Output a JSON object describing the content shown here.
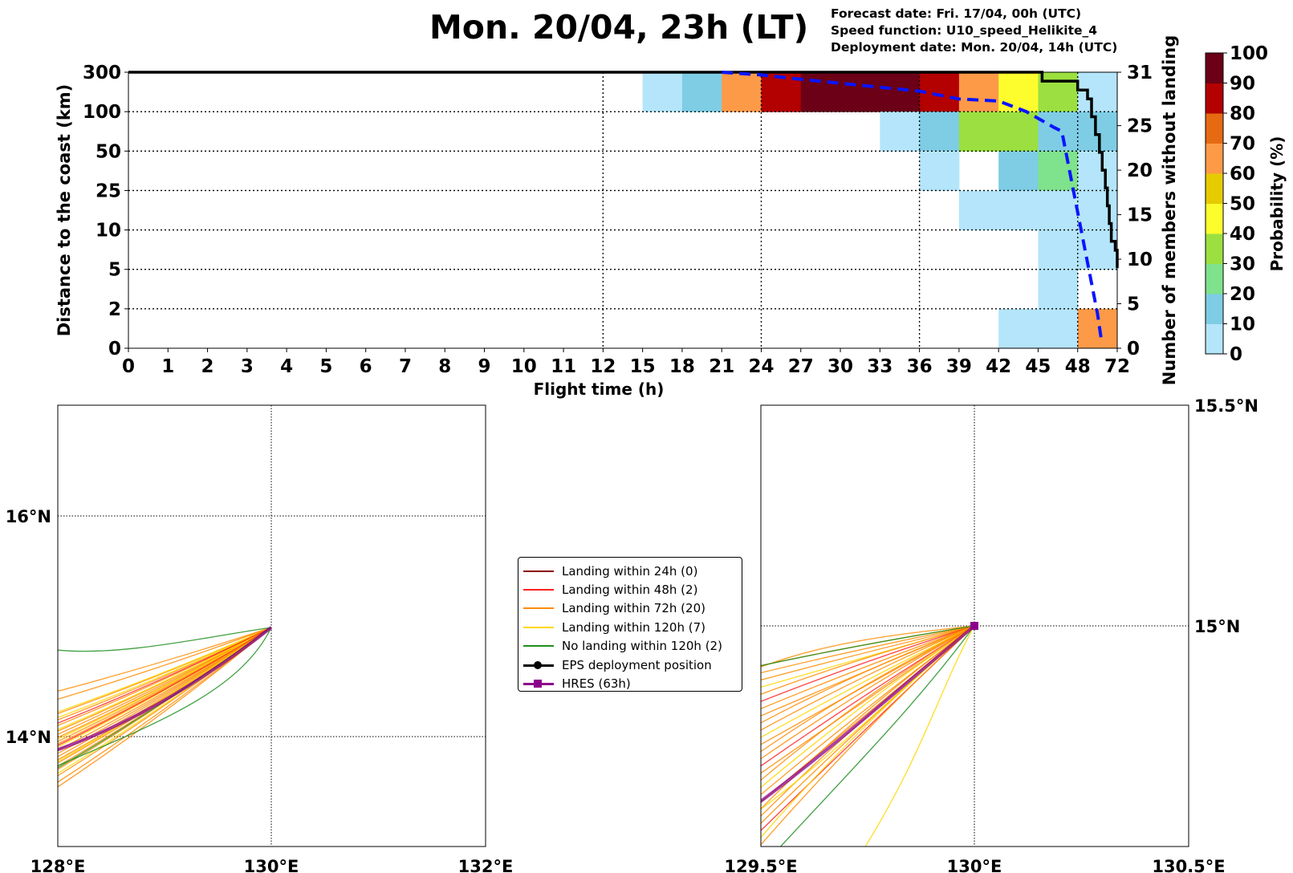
{
  "title": "Mon. 20/04, 23h (LT)",
  "info": {
    "forecast_date": "Forecast date: Fri. 17/04, 00h (UTC)",
    "speed_function": "Speed function: U10_speed_Helikite_4",
    "deployment_date": "Deployment date: Mon. 20/04, 14h (UTC)"
  },
  "chart_data": [
    {
      "type": "heatmap",
      "title": "",
      "xlabel": "Flight time (h)",
      "ylabel": "Distance to the coast (km)",
      "ylabel_right": "Number of members without landing",
      "x_tick_labels": [
        "0",
        "1",
        "2",
        "3",
        "4",
        "5",
        "6",
        "7",
        "8",
        "9",
        "10",
        "11",
        "12",
        "15",
        "18",
        "21",
        "24",
        "27",
        "30",
        "33",
        "36",
        "39",
        "42",
        "45",
        "48",
        "72"
      ],
      "y_tick_labels": [
        "0",
        "2",
        "5",
        "10",
        "25",
        "50",
        "100",
        "300"
      ],
      "y_right_ticks": [
        0,
        5,
        10,
        15,
        20,
        25,
        31
      ],
      "y_right_range": [
        0,
        31
      ],
      "colorbar": {
        "label": "Probability (%)",
        "ticks": [
          "0",
          "10",
          "20",
          "30",
          "40",
          "50",
          "60",
          "70",
          "80",
          "90",
          "100"
        ],
        "colors": [
          "#b4e5fa",
          "#7ecde4",
          "#7fe28c",
          "#9be040",
          "#fdfd2e",
          "#e6cb00",
          "#fd9a48",
          "#e66a12",
          "#b30000",
          "#6b0016"
        ]
      },
      "cells": [
        {
          "col": 13,
          "row": 6,
          "p": 5
        },
        {
          "col": 14,
          "row": 6,
          "p": 15
        },
        {
          "col": 15,
          "row": 6,
          "p": 65
        },
        {
          "col": 16,
          "row": 6,
          "p": 85
        },
        {
          "col": 17,
          "row": 6,
          "p": 95
        },
        {
          "col": 18,
          "row": 6,
          "p": 95
        },
        {
          "col": 19,
          "row": 6,
          "p": 95
        },
        {
          "col": 20,
          "row": 6,
          "p": 85
        },
        {
          "col": 21,
          "row": 6,
          "p": 65
        },
        {
          "col": 22,
          "row": 6,
          "p": 45
        },
        {
          "col": 23,
          "row": 6,
          "p": 35
        },
        {
          "col": 24,
          "row": 6,
          "p": 5
        },
        {
          "col": 19,
          "row": 5,
          "p": 5
        },
        {
          "col": 20,
          "row": 5,
          "p": 15
        },
        {
          "col": 21,
          "row": 5,
          "p": 35
        },
        {
          "col": 22,
          "row": 5,
          "p": 35
        },
        {
          "col": 23,
          "row": 5,
          "p": 15
        },
        {
          "col": 24,
          "row": 5,
          "p": 15
        },
        {
          "col": 20,
          "row": 4,
          "p": 5
        },
        {
          "col": 22,
          "row": 4,
          "p": 15
        },
        {
          "col": 23,
          "row": 4,
          "p": 25
        },
        {
          "col": 24,
          "row": 4,
          "p": 5
        },
        {
          "col": 21,
          "row": 3,
          "p": 5
        },
        {
          "col": 22,
          "row": 3,
          "p": 5
        },
        {
          "col": 23,
          "row": 3,
          "p": 5
        },
        {
          "col": 24,
          "row": 3,
          "p": 5
        },
        {
          "col": 23,
          "row": 2,
          "p": 5
        },
        {
          "col": 24,
          "row": 2,
          "p": 5
        },
        {
          "col": 23,
          "row": 1,
          "p": 5
        },
        {
          "col": 22,
          "row": 0,
          "p": 5
        },
        {
          "col": 23,
          "row": 0,
          "p": 5
        },
        {
          "col": 24,
          "row": 0,
          "p": 65
        }
      ],
      "members_no_landing": [
        [
          0,
          31
        ],
        [
          23.1,
          31
        ],
        [
          23.1,
          30
        ],
        [
          24.0,
          30
        ],
        [
          24.0,
          29
        ],
        [
          24.25,
          29
        ],
        [
          24.25,
          28
        ],
        [
          24.35,
          28
        ],
        [
          24.35,
          26
        ],
        [
          24.45,
          26
        ],
        [
          24.45,
          24
        ],
        [
          24.55,
          24
        ],
        [
          24.55,
          22
        ],
        [
          24.62,
          22
        ],
        [
          24.62,
          20
        ],
        [
          24.7,
          20
        ],
        [
          24.7,
          18
        ],
        [
          24.75,
          18
        ],
        [
          24.75,
          16
        ],
        [
          24.8,
          16
        ],
        [
          24.8,
          14
        ],
        [
          24.85,
          14
        ],
        [
          24.85,
          12
        ],
        [
          24.95,
          12
        ],
        [
          24.95,
          11
        ],
        [
          25,
          11
        ],
        [
          25,
          10
        ],
        [
          25,
          9
        ]
      ],
      "median_distance": [
        [
          15.0,
          7.0
        ],
        [
          16.0,
          6.93
        ],
        [
          17.0,
          6.82
        ],
        [
          18.0,
          6.72
        ],
        [
          19.0,
          6.62
        ],
        [
          20.0,
          6.52
        ],
        [
          21.0,
          6.32
        ],
        [
          22.0,
          6.27
        ],
        [
          22.7,
          6.0
        ],
        [
          23.4,
          5.6
        ],
        [
          23.6,
          5.5
        ],
        [
          24.5,
          0.88
        ],
        [
          24.6,
          0.2
        ]
      ]
    },
    {
      "type": "map",
      "title": "",
      "x_ticks": [
        "128°E",
        "130°E",
        "132°E"
      ],
      "y_ticks": [
        "14°N",
        "16°N"
      ],
      "lon_range": [
        128,
        132
      ],
      "lat_range": [
        13,
        17
      ]
    },
    {
      "type": "map",
      "title": "",
      "x_ticks": [
        "129.5°E",
        "130°E",
        "130.5°E"
      ],
      "y_ticks": [
        "15°N",
        "15.5°N"
      ],
      "lon_range": [
        129.5,
        130.5
      ],
      "lat_range": [
        14.5,
        15.5
      ]
    }
  ],
  "legend": [
    {
      "label": "Landing within 24h (0)",
      "color": "#8b0000",
      "marker": "none"
    },
    {
      "label": "Landing within 48h (2)",
      "color": "#ff2020",
      "marker": "none"
    },
    {
      "label": "Landing within 72h (20)",
      "color": "#ff8c00",
      "marker": "none"
    },
    {
      "label": "Landing within 120h (7)",
      "color": "#ffd700",
      "marker": "none"
    },
    {
      "label": "No landing within 120h (2)",
      "color": "#1f8f1f",
      "marker": "none"
    },
    {
      "label": "EPS deployment position",
      "color": "#000000",
      "marker": "circle"
    },
    {
      "label": "HRES (63h)",
      "color": "#8b008b",
      "marker": "square"
    }
  ]
}
